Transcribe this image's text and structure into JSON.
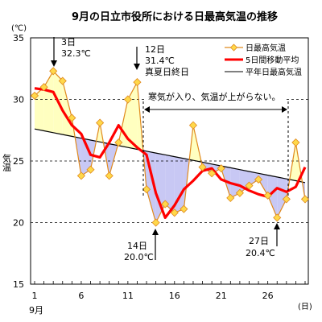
{
  "chart_data": {
    "type": "line",
    "title": "9月の日立市役所における日最高気温の推移",
    "unit_label": "(℃)",
    "ylabel": "気温",
    "x_unit_label": "(日)",
    "month_label": "9月",
    "xlim": [
      1,
      30
    ],
    "ylim": [
      15,
      35
    ],
    "x_ticks": [
      1,
      6,
      11,
      16,
      21,
      26
    ],
    "y_ticks": [
      15,
      20,
      25,
      30,
      35
    ],
    "grid": "dashed at 20, 25, 30",
    "legend": {
      "position": "top-right",
      "entries": [
        "日最高気温",
        "5日間移動平均",
        "平年日最高気温"
      ]
    },
    "x": [
      1,
      2,
      3,
      4,
      5,
      6,
      7,
      8,
      9,
      10,
      11,
      12,
      13,
      14,
      15,
      16,
      17,
      18,
      19,
      20,
      21,
      22,
      23,
      24,
      25,
      26,
      27,
      28,
      29,
      30
    ],
    "series": [
      {
        "name": "日最高気温",
        "color": "#e08a1e",
        "marker_color": "#ffd84a",
        "values": [
          30.3,
          31.0,
          32.3,
          31.5,
          28.5,
          23.8,
          24.3,
          28.1,
          23.8,
          26.5,
          30.0,
          31.4,
          22.7,
          20.0,
          21.5,
          20.8,
          21.1,
          27.9,
          24.5,
          24.0,
          24.4,
          22.0,
          22.4,
          23.0,
          23.5,
          22.2,
          20.4,
          21.9,
          26.5,
          21.9
        ]
      },
      {
        "name": "5日間移動平均",
        "color": "#ff0000",
        "values": [
          30.9,
          30.8,
          30.6,
          29.1,
          27.9,
          27.2,
          25.5,
          25.3,
          26.5,
          27.9,
          26.8,
          26.1,
          25.5,
          22.4,
          20.4,
          21.4,
          22.7,
          23.4,
          24.2,
          24.4,
          23.5,
          23.2,
          23.0,
          22.6,
          22.3,
          22.1,
          22.8,
          22.5,
          22.9,
          24.5
        ]
      },
      {
        "name": "平年日最高気温",
        "color": "#000000",
        "values": [
          27.6,
          27.45,
          27.3,
          27.15,
          27.0,
          26.85,
          26.7,
          26.55,
          26.4,
          26.25,
          26.1,
          25.95,
          25.8,
          25.65,
          25.5,
          25.35,
          25.2,
          25.05,
          24.9,
          24.75,
          24.6,
          24.45,
          24.3,
          24.15,
          24.0,
          23.85,
          23.7,
          23.55,
          23.4,
          23.25
        ]
      }
    ],
    "annotations": {
      "day3_day": "3日",
      "day3_temp": "32.3℃",
      "day12_day": "12日",
      "day12_temp": "31.4℃",
      "day12_note": "真夏日終日",
      "period_note": "寒気が入り、気温が上がらない。",
      "day14_day": "14日",
      "day14_temp": "20.0℃",
      "day27_day": "27日",
      "day27_temp": "20.4℃"
    },
    "fill_colors": {
      "warm": "#ffffc0",
      "cool": "#c8c8f4"
    }
  }
}
